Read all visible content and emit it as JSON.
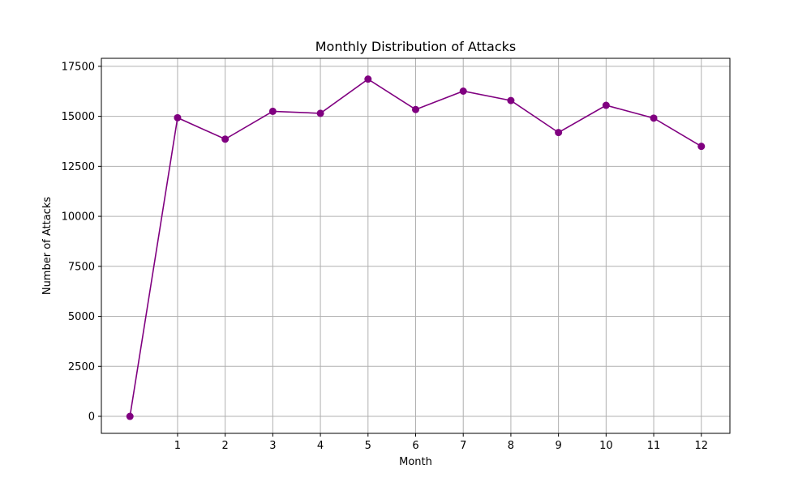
{
  "chart_data": {
    "type": "line",
    "title": "Monthly Distribution of Attacks",
    "xlabel": "Month",
    "ylabel": "Number of Attacks",
    "x": [
      0,
      1,
      2,
      3,
      4,
      5,
      6,
      7,
      8,
      9,
      10,
      11,
      12
    ],
    "series": [
      {
        "values": [
          0,
          14930,
          13860,
          15250,
          15150,
          16860,
          15340,
          16260,
          15790,
          14190,
          15550,
          14910,
          13500
        ]
      }
    ],
    "x_ticks": [
      1,
      2,
      3,
      4,
      5,
      6,
      7,
      8,
      9,
      10,
      11,
      12
    ],
    "y_ticks": [
      0,
      2500,
      5000,
      7500,
      10000,
      12500,
      15000,
      17500
    ],
    "xlim": [
      -0.6,
      12.6
    ],
    "ylim": [
      -850,
      17900
    ],
    "grid": true,
    "colors": {
      "line": "#800080",
      "grid": "#b0b0b0",
      "axes": "#000000"
    }
  }
}
